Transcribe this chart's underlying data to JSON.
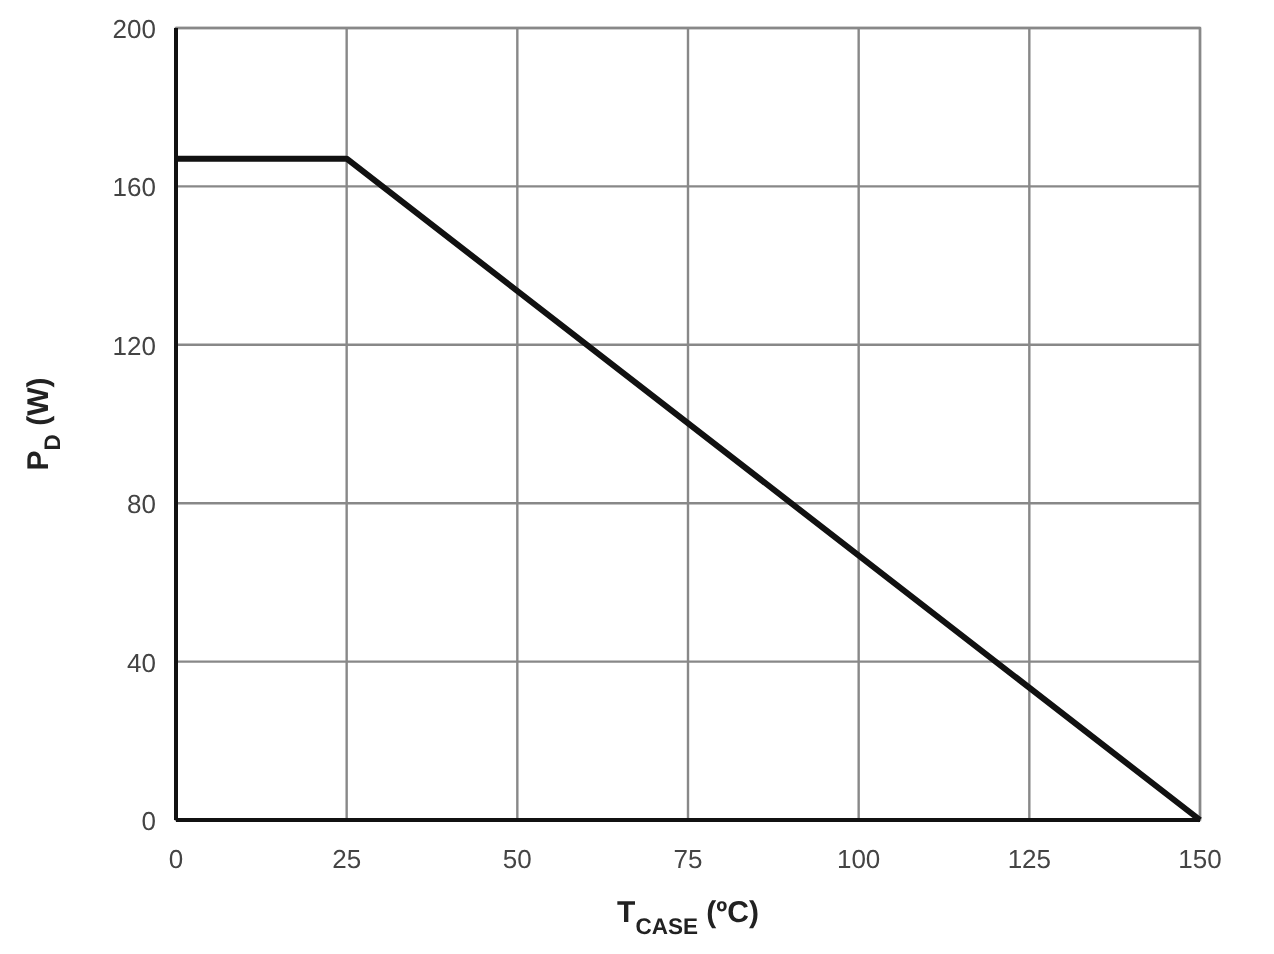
{
  "chart_data": {
    "type": "line",
    "xlabel": "T$_{CASE}$ (ºC)",
    "ylabel": "P$_{D}$ (W)",
    "x": [
      0,
      25,
      150
    ],
    "series": [
      {
        "color": "#111111",
        "values": [
          167,
          167,
          0
        ]
      }
    ],
    "xlim": [
      0,
      150
    ],
    "xticks": [
      0,
      25,
      50,
      75,
      100,
      125,
      150
    ],
    "ylim": [
      0,
      200
    ],
    "yticks": [
      0,
      40,
      80,
      120,
      160,
      200
    ],
    "grid": true,
    "marker": "none",
    "line_style": "solid"
  }
}
